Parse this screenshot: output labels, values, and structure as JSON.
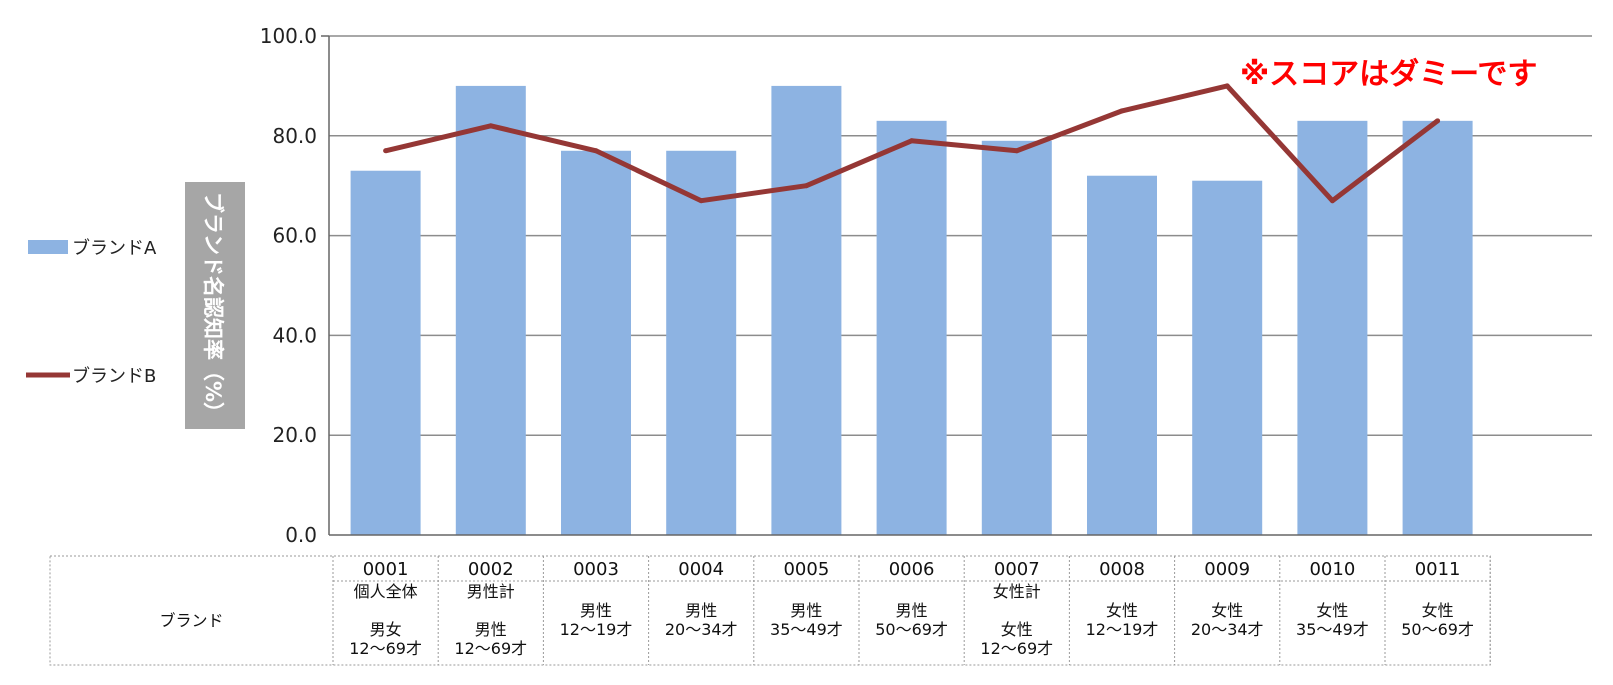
{
  "chart_data": {
    "type": "bar",
    "title": "",
    "ylabel": "ブランド名認知率（%）",
    "xlabel": "",
    "ylim": [
      0,
      100
    ],
    "y_ticks": [
      "0.0",
      "20.0",
      "40.0",
      "60.0",
      "80.0",
      "100.0"
    ],
    "grid": true,
    "legend_position": "left",
    "table_row_header": "ブランド",
    "categories": [
      {
        "code": "0001",
        "lines": [
          "個人全体",
          "",
          "男女",
          "12〜69才"
        ]
      },
      {
        "code": "0002",
        "lines": [
          "男性計",
          "",
          "男性",
          "12〜69才"
        ]
      },
      {
        "code": "0003",
        "lines": [
          "",
          "男性",
          "12〜19才",
          ""
        ]
      },
      {
        "code": "0004",
        "lines": [
          "",
          "男性",
          "20〜34才",
          ""
        ]
      },
      {
        "code": "0005",
        "lines": [
          "",
          "男性",
          "35〜49才",
          ""
        ]
      },
      {
        "code": "0006",
        "lines": [
          "",
          "男性",
          "50〜69才",
          ""
        ]
      },
      {
        "code": "0007",
        "lines": [
          "女性計",
          "",
          "女性",
          "12〜69才"
        ]
      },
      {
        "code": "0008",
        "lines": [
          "",
          "女性",
          "12〜19才",
          ""
        ]
      },
      {
        "code": "0009",
        "lines": [
          "",
          "女性",
          "20〜34才",
          ""
        ]
      },
      {
        "code": "0010",
        "lines": [
          "",
          "女性",
          "35〜49才",
          ""
        ]
      },
      {
        "code": "0011",
        "lines": [
          "",
          "女性",
          "50〜69才",
          ""
        ]
      }
    ],
    "series": [
      {
        "name": "ブランドA",
        "type": "bar",
        "color": "#8db3e2",
        "values": [
          73,
          90,
          77,
          77,
          90,
          83,
          79,
          72,
          71,
          83,
          83
        ]
      },
      {
        "name": "ブランドB",
        "type": "line",
        "color": "#953735",
        "values": [
          77,
          82,
          77,
          67,
          70,
          79,
          77,
          85,
          90,
          67,
          83
        ]
      }
    ],
    "annotation": "※スコアはダミーです"
  }
}
